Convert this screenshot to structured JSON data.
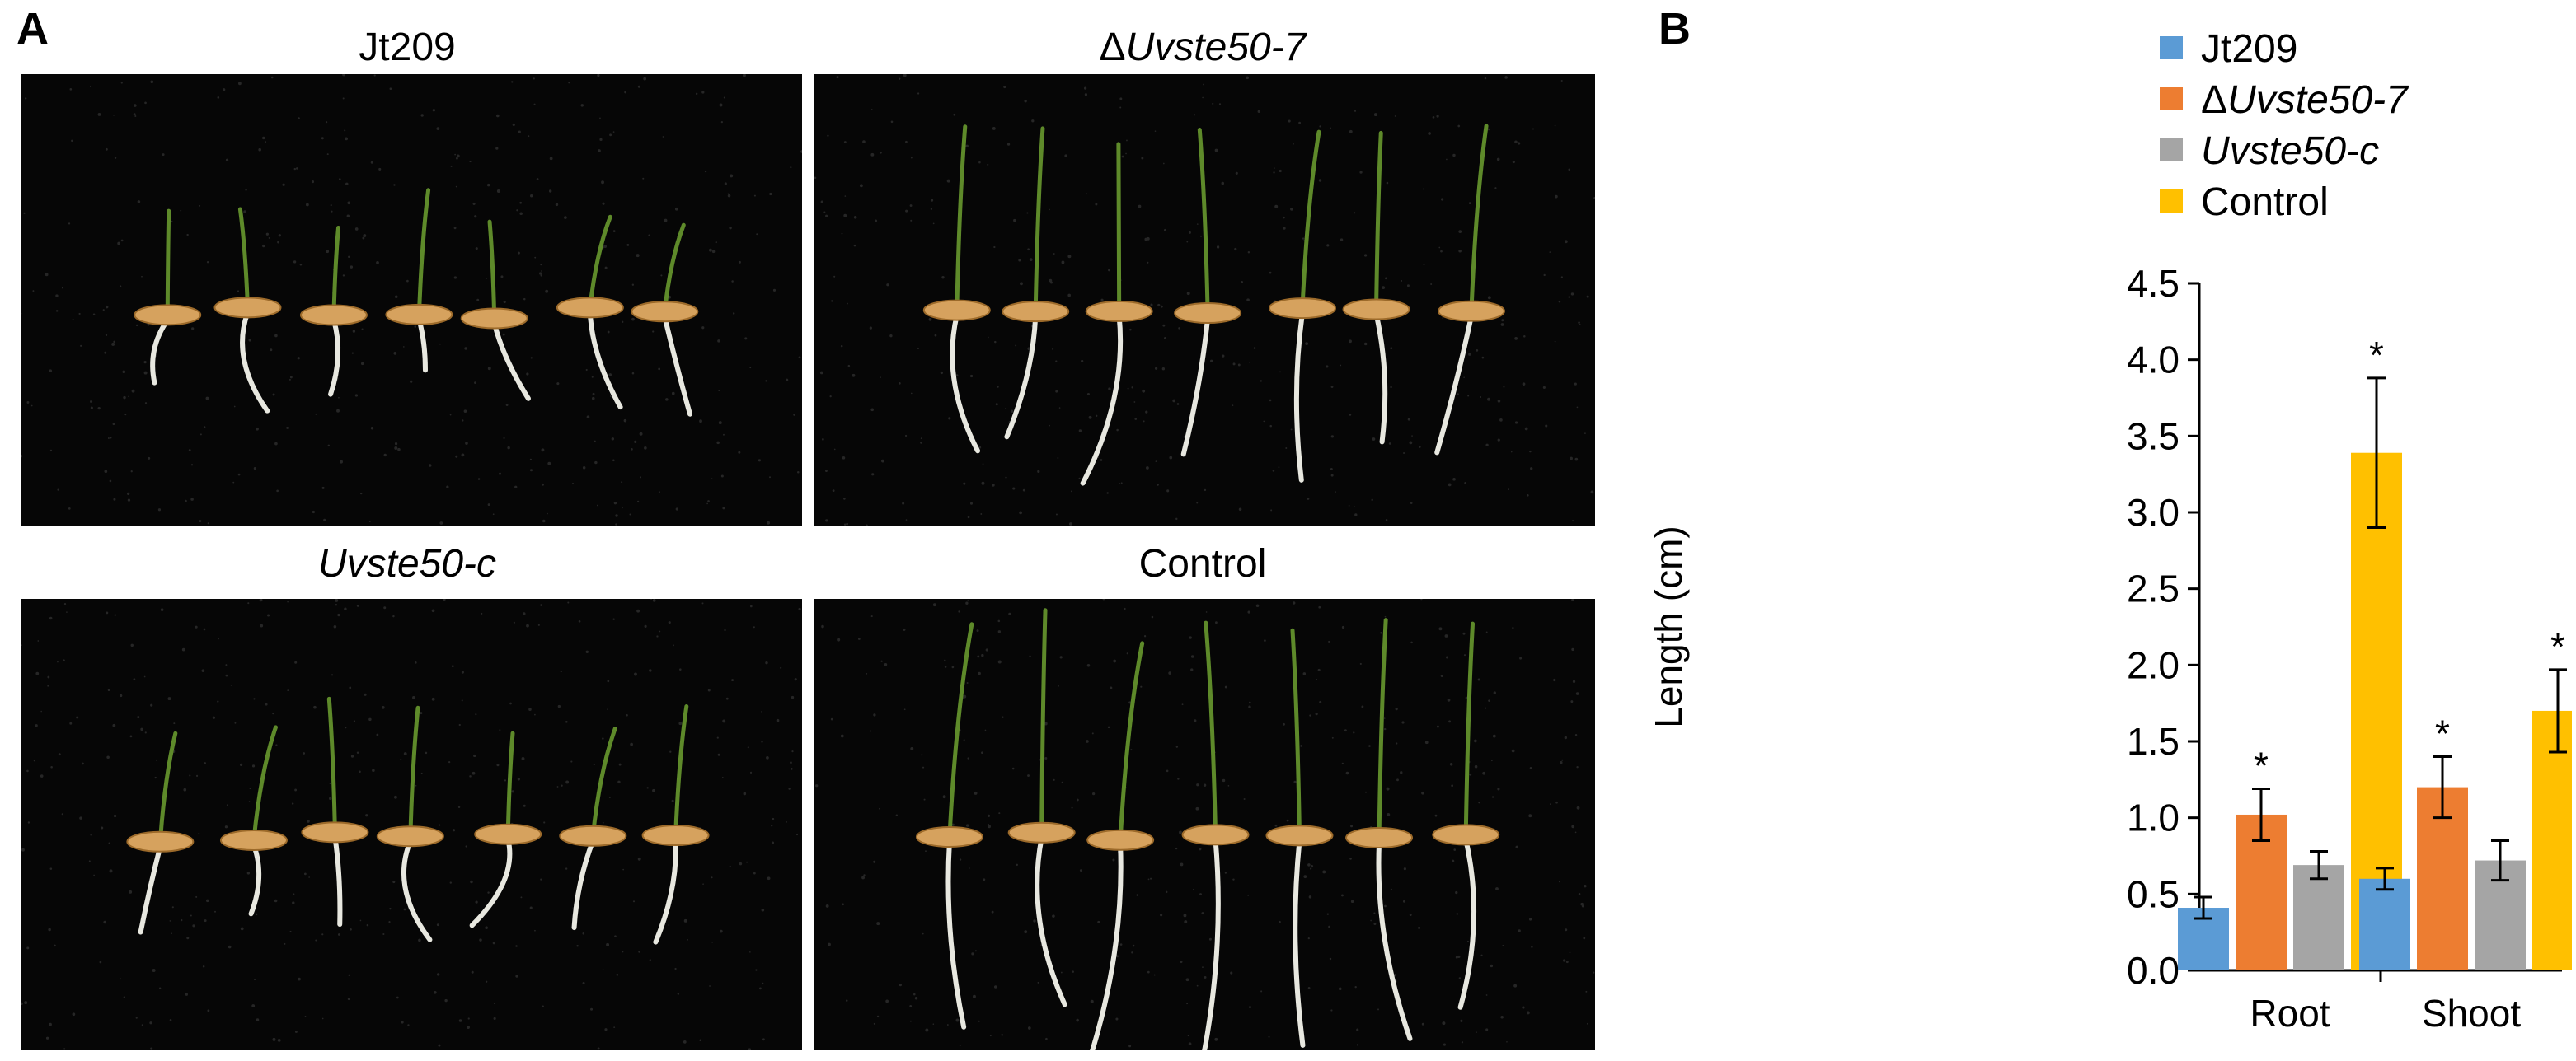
{
  "panels": {
    "a_label": "A",
    "b_label": "B"
  },
  "photos": [
    {
      "id": "jt209",
      "title_plain": "Jt209",
      "title_italic": "",
      "prefix": "",
      "seedlings": 7,
      "growth": 0.35
    },
    {
      "id": "uvste50-7",
      "title_plain": "",
      "prefix": "Δ",
      "title_italic": "Uvste50-7",
      "seedlings": 7,
      "growth": 1.0
    },
    {
      "id": "uvste50-c",
      "title_plain": "",
      "prefix": "",
      "title_italic": "Uvste50-c",
      "seedlings": 7,
      "growth": 0.5
    },
    {
      "id": "control",
      "title_plain": "Control",
      "title_italic": "",
      "prefix": "",
      "seedlings": 7,
      "growth": 1.4
    }
  ],
  "chart_data": {
    "type": "bar",
    "categories": [
      "Root",
      "Shoot"
    ],
    "ylabel": "Length (cm)",
    "ylim": [
      0,
      4.5
    ],
    "yticks": [
      "0.0",
      "0.5",
      "1.0",
      "1.5",
      "2.0",
      "2.5",
      "3.0",
      "3.5",
      "4.0",
      "4.5"
    ],
    "legend_position": "top",
    "series": [
      {
        "name_prefix": "",
        "name_italic": "",
        "name": "Jt209",
        "color": "#5B9BD5",
        "values": [
          0.41,
          0.6
        ],
        "errors": [
          0.07,
          0.07
        ],
        "significant": [
          false,
          false
        ]
      },
      {
        "name_prefix": "Δ",
        "name_italic": "Uvste50-7",
        "name": "",
        "color": "#ED7D31",
        "values": [
          1.02,
          1.2
        ],
        "errors": [
          0.17,
          0.2
        ],
        "significant": [
          true,
          true
        ]
      },
      {
        "name_prefix": "",
        "name_italic": "Uvste50-c",
        "name": "",
        "color": "#A5A5A5",
        "values": [
          0.69,
          0.72
        ],
        "errors": [
          0.09,
          0.13
        ],
        "significant": [
          false,
          false
        ]
      },
      {
        "name_prefix": "",
        "name_italic": "",
        "name": "Control",
        "color": "#FFC000",
        "values": [
          3.39,
          1.7
        ],
        "errors": [
          0.49,
          0.27
        ],
        "significant": [
          true,
          true
        ]
      }
    ],
    "significance_marker": "*"
  }
}
